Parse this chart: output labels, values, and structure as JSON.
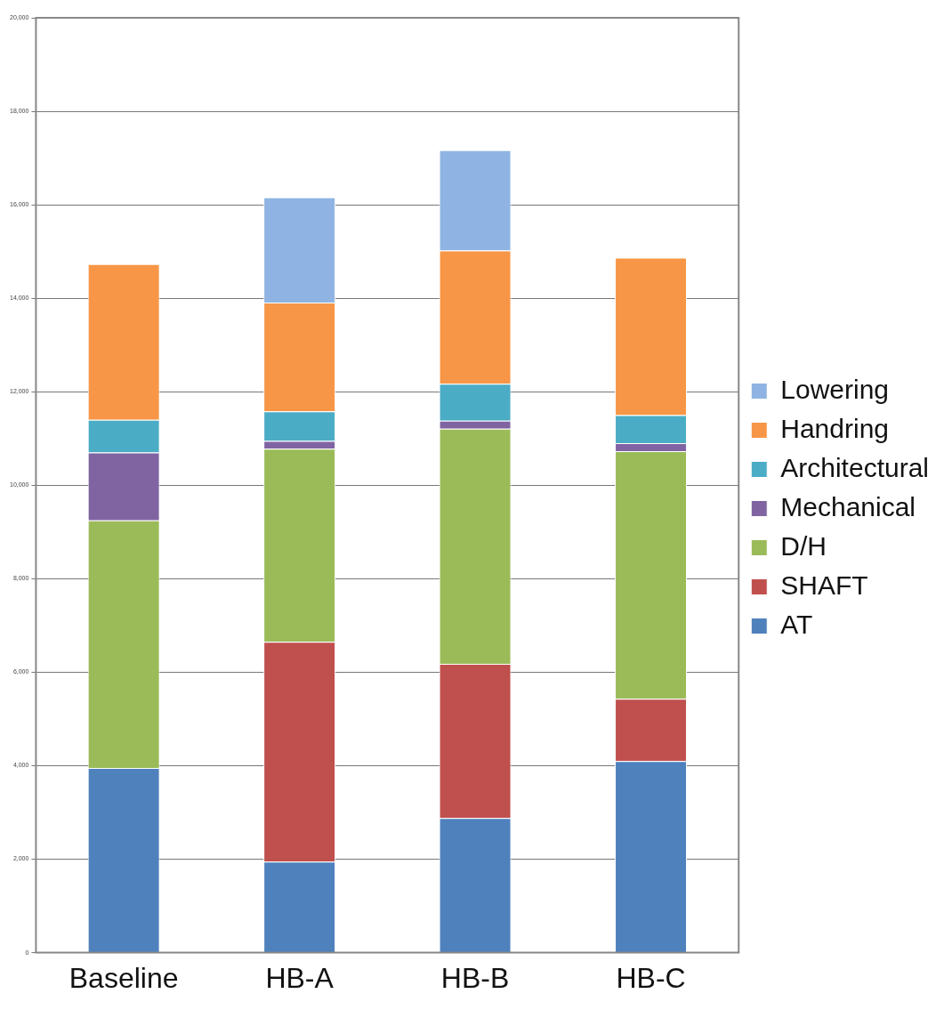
{
  "chart_data": {
    "type": "bar",
    "stacked": true,
    "categories": [
      "Baseline",
      "HB-A",
      "HB-B",
      "HB-C"
    ],
    "ylim": [
      0,
      20000
    ],
    "yticks": [
      {
        "value": 0,
        "label": "0"
      },
      {
        "value": 2000,
        "label": "2,000"
      },
      {
        "value": 4000,
        "label": "4,000"
      },
      {
        "value": 6000,
        "label": "6,000"
      },
      {
        "value": 8000,
        "label": "8,000"
      },
      {
        "value": 10000,
        "label": "10,000"
      },
      {
        "value": 12000,
        "label": "12,000"
      },
      {
        "value": 14000,
        "label": "14,000"
      },
      {
        "value": 16000,
        "label": "16,000"
      },
      {
        "value": 18000,
        "label": "18,000"
      },
      {
        "value": 20000,
        "label": "20,000"
      }
    ],
    "grid": "y",
    "legend": "right",
    "series": [
      {
        "name": "AT",
        "color": "#4f81bd",
        "values": [
          3950,
          1950,
          2880,
          4100
        ]
      },
      {
        "name": "SHAFT",
        "color": "#c0504d",
        "values": [
          0,
          4700,
          3300,
          1330
        ]
      },
      {
        "name": "D/H",
        "color": "#9bbb59",
        "values": [
          5300,
          4130,
          5030,
          5300
        ]
      },
      {
        "name": "Mechanical",
        "color": "#8064a2",
        "values": [
          1450,
          170,
          170,
          170
        ]
      },
      {
        "name": "Architectural",
        "color": "#4bacc6",
        "values": [
          700,
          630,
          790,
          600
        ]
      },
      {
        "name": "Handring",
        "color": "#f79646",
        "values": [
          3330,
          2330,
          2850,
          3370
        ]
      },
      {
        "name": "Lowering",
        "color": "#8fb4e3",
        "values": [
          0,
          2250,
          2150,
          0
        ]
      }
    ]
  }
}
